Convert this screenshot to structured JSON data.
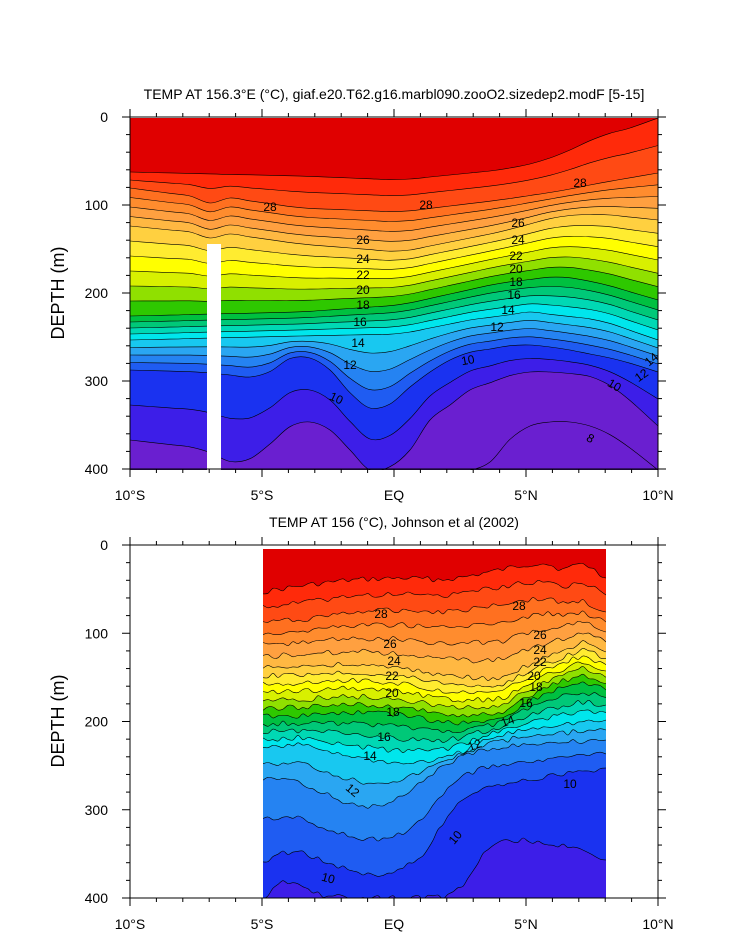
{
  "chart_data": [
    {
      "type": "contour",
      "title": "TEMP AT 156.3°E (°C), giaf.e20.T62.g16.marbl090.zooO2.sizedep2.modF [5-15]",
      "ylabel": "DEPTH (m)",
      "xlabel": "",
      "xlim": [
        -10,
        10
      ],
      "ylim": [
        400,
        0
      ],
      "x_ticks": [
        -10,
        -5,
        0,
        5,
        10
      ],
      "x_tick_labels": [
        "10°S",
        "5°S",
        "EQ",
        "5°N",
        "10°N"
      ],
      "y_ticks": [
        0,
        100,
        200,
        300,
        400
      ],
      "y_tick_labels": [
        "0",
        "100",
        "200",
        "300",
        "400"
      ],
      "data_x_range": [
        -10,
        10
      ],
      "masked_region": {
        "x": [
          -7.2,
          -6.7
        ],
        "depth": [
          145,
          400
        ]
      },
      "contour_levels": [
        8,
        10,
        12,
        14,
        16,
        18,
        20,
        22,
        24,
        26,
        28
      ],
      "contour_labels": [
        "28",
        "28",
        "28",
        "26",
        "24",
        "22",
        "20",
        "18",
        "16",
        "14",
        "12",
        "10",
        "26",
        "24",
        "22",
        "20",
        "18",
        "16",
        "14",
        "12",
        "10",
        "14",
        "12",
        "10",
        "8"
      ]
    },
    {
      "type": "contour",
      "title": "TEMP AT 156 (°C), Johnson et al (2002)",
      "ylabel": "DEPTH (m)",
      "xlabel": "",
      "xlim": [
        -10,
        10
      ],
      "ylim": [
        400,
        0
      ],
      "x_ticks": [
        -10,
        -5,
        0,
        5,
        10
      ],
      "x_tick_labels": [
        "10°S",
        "5°S",
        "EQ",
        "5°N",
        "10°N"
      ],
      "y_ticks": [
        0,
        100,
        200,
        300,
        400
      ],
      "y_tick_labels": [
        "0",
        "100",
        "200",
        "300",
        "400"
      ],
      "data_x_range": [
        -5,
        8
      ],
      "data_depth_range": [
        5,
        400
      ],
      "contour_levels": [
        8,
        10,
        12,
        14,
        16,
        18,
        20,
        22,
        24,
        26,
        28
      ],
      "contour_labels": [
        "28",
        "28",
        "26",
        "24",
        "22",
        "20",
        "18",
        "16",
        "14",
        "26",
        "24",
        "22",
        "20",
        "18",
        "16",
        "14",
        "12",
        "12",
        "10",
        "10",
        "10"
      ]
    }
  ]
}
